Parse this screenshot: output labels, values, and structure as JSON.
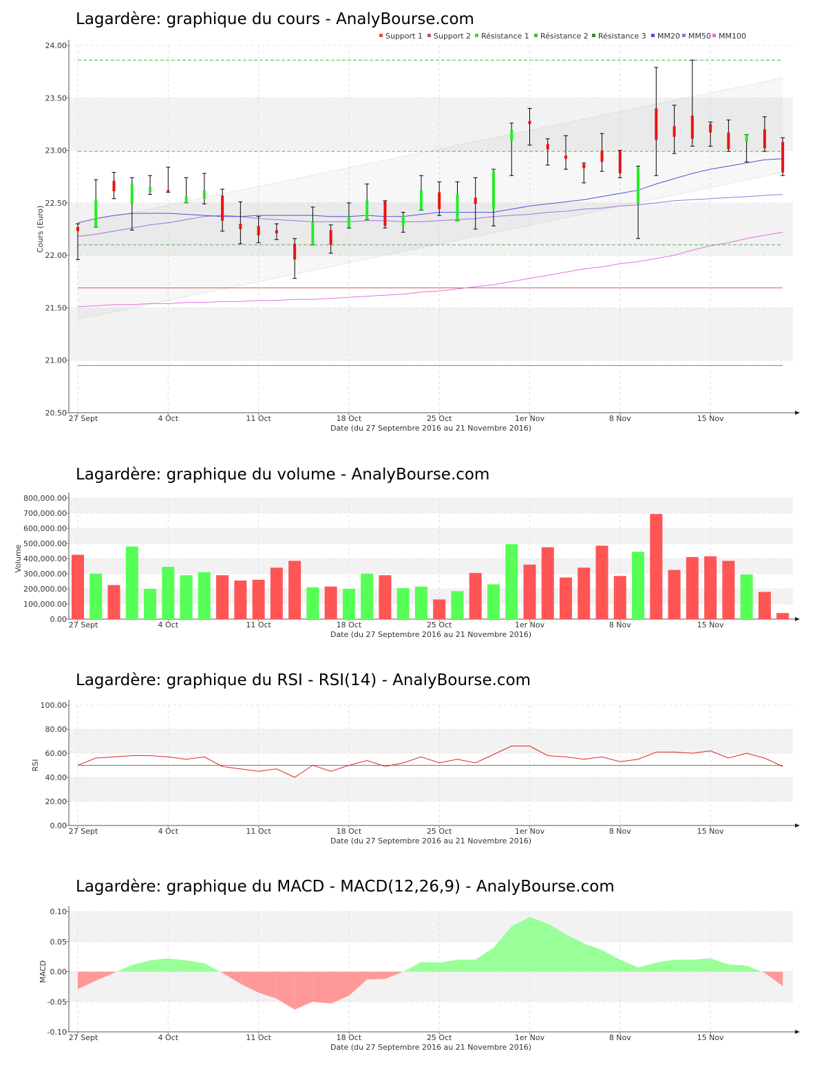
{
  "chart_data": [
    {
      "type": "candlestick",
      "title": "Lagardère: graphique du cours - AnalyBourse.com",
      "ylabel": "Cours (Euro)",
      "xlabel": "Date (du 27 Septembre 2016 au 21 Novembre 2016)",
      "ylim": [
        20.5,
        24.0
      ],
      "yticks": [
        "20.50",
        "21.00",
        "21.50",
        "22.00",
        "22.50",
        "23.00",
        "23.50",
        "24.00"
      ],
      "xticks": [
        {
          "label": "27 Sept",
          "index": 0
        },
        {
          "label": "4 Oct",
          "index": 5
        },
        {
          "label": "11 Oct",
          "index": 10
        },
        {
          "label": "18 Oct",
          "index": 15
        },
        {
          "label": "25 Oct",
          "index": 20
        },
        {
          "label": "1er Nov",
          "index": 25
        },
        {
          "label": "8 Nov",
          "index": 30
        },
        {
          "label": "15 Nov",
          "index": 35
        }
      ],
      "legend": [
        {
          "label": "Support 1",
          "color": "#e05050"
        },
        {
          "label": "Support 2",
          "color": "#b06060"
        },
        {
          "label": "Résistance 1",
          "color": "#60c060"
        },
        {
          "label": "Résistance 2",
          "color": "#50b050"
        },
        {
          "label": "Résistance 3",
          "color": "#408040"
        },
        {
          "label": "MM20",
          "color": "#5050e0"
        },
        {
          "label": "MM50",
          "color": "#a070e0"
        },
        {
          "label": "MM100",
          "color": "#e070e0"
        }
      ],
      "candles": [
        {
          "o": 22.27,
          "h": 22.3,
          "l": 21.96,
          "c": 22.23
        },
        {
          "o": 22.27,
          "h": 22.72,
          "l": 22.27,
          "c": 22.53
        },
        {
          "o": 22.71,
          "h": 22.79,
          "l": 22.54,
          "c": 22.61
        },
        {
          "o": 22.49,
          "h": 22.74,
          "l": 22.24,
          "c": 22.68
        },
        {
          "o": 22.6,
          "h": 22.76,
          "l": 22.58,
          "c": 22.65
        },
        {
          "o": 22.62,
          "h": 22.84,
          "l": 22.6,
          "c": 22.6
        },
        {
          "o": 22.5,
          "h": 22.74,
          "l": 22.5,
          "c": 22.56
        },
        {
          "o": 22.54,
          "h": 22.78,
          "l": 22.49,
          "c": 22.62
        },
        {
          "o": 22.57,
          "h": 22.63,
          "l": 22.23,
          "c": 22.33
        },
        {
          "o": 22.3,
          "h": 22.51,
          "l": 22.11,
          "c": 22.25
        },
        {
          "o": 22.28,
          "h": 22.37,
          "l": 22.12,
          "c": 22.19
        },
        {
          "o": 22.24,
          "h": 22.3,
          "l": 22.15,
          "c": 22.21
        },
        {
          "o": 22.11,
          "h": 22.16,
          "l": 21.78,
          "c": 21.96
        },
        {
          "o": 22.1,
          "h": 22.46,
          "l": 22.1,
          "c": 22.32
        },
        {
          "o": 22.24,
          "h": 22.29,
          "l": 22.02,
          "c": 22.1
        },
        {
          "o": 22.27,
          "h": 22.5,
          "l": 22.26,
          "c": 22.37
        },
        {
          "o": 22.34,
          "h": 22.68,
          "l": 22.34,
          "c": 22.52
        },
        {
          "o": 22.52,
          "h": 22.52,
          "l": 22.26,
          "c": 22.28
        },
        {
          "o": 22.28,
          "h": 22.41,
          "l": 22.22,
          "c": 22.38
        },
        {
          "o": 22.43,
          "h": 22.76,
          "l": 22.43,
          "c": 22.62
        },
        {
          "o": 22.6,
          "h": 22.7,
          "l": 22.38,
          "c": 22.44
        },
        {
          "o": 22.33,
          "h": 22.7,
          "l": 22.33,
          "c": 22.58
        },
        {
          "o": 22.55,
          "h": 22.74,
          "l": 22.25,
          "c": 22.49
        },
        {
          "o": 22.44,
          "h": 22.82,
          "l": 22.28,
          "c": 22.8
        },
        {
          "o": 23.09,
          "h": 23.26,
          "l": 22.76,
          "c": 23.2
        },
        {
          "o": 23.28,
          "h": 23.4,
          "l": 23.05,
          "c": 23.25
        },
        {
          "o": 23.06,
          "h": 23.11,
          "l": 22.86,
          "c": 23.01
        },
        {
          "o": 22.95,
          "h": 23.14,
          "l": 22.82,
          "c": 22.92
        },
        {
          "o": 22.87,
          "h": 22.88,
          "l": 22.69,
          "c": 22.83
        },
        {
          "o": 23.0,
          "h": 23.16,
          "l": 22.8,
          "c": 22.89
        },
        {
          "o": 23.0,
          "h": 23.0,
          "l": 22.74,
          "c": 22.78
        },
        {
          "o": 22.49,
          "h": 22.85,
          "l": 22.16,
          "c": 22.84
        },
        {
          "o": 23.4,
          "h": 23.79,
          "l": 22.76,
          "c": 23.1
        },
        {
          "o": 23.23,
          "h": 23.43,
          "l": 22.97,
          "c": 23.13
        },
        {
          "o": 23.33,
          "h": 23.86,
          "l": 23.04,
          "c": 23.11
        },
        {
          "o": 23.25,
          "h": 23.27,
          "l": 23.04,
          "c": 23.17
        },
        {
          "o": 23.17,
          "h": 23.29,
          "l": 22.99,
          "c": 23.01
        },
        {
          "o": 23.08,
          "h": 23.15,
          "l": 22.89,
          "c": 23.15
        },
        {
          "o": 23.2,
          "h": 23.32,
          "l": 22.99,
          "c": 23.02
        },
        {
          "o": 23.08,
          "h": 23.12,
          "l": 22.76,
          "c": 22.79
        }
      ],
      "support_lines": [
        21.69,
        20.95
      ],
      "resistance_lines": [
        22.1,
        22.99,
        23.86
      ],
      "trend_channel": {
        "upper": [
          22.3,
          23.69
        ],
        "lower": [
          21.39,
          22.79
        ]
      },
      "mm20": [
        22.31,
        22.35,
        22.38,
        22.4,
        22.4,
        22.4,
        22.39,
        22.38,
        22.37,
        22.37,
        22.38,
        22.38,
        22.38,
        22.38,
        22.37,
        22.37,
        22.38,
        22.37,
        22.37,
        22.39,
        22.41,
        22.41,
        22.41,
        22.41,
        22.44,
        22.47,
        22.49,
        22.51,
        22.53,
        22.56,
        22.59,
        22.62,
        22.68,
        22.73,
        22.78,
        22.82,
        22.85,
        22.88,
        22.91,
        22.92
      ],
      "mm50": [
        22.18,
        22.2,
        22.23,
        22.26,
        22.29,
        22.31,
        22.34,
        22.37,
        22.38,
        22.37,
        22.35,
        22.34,
        22.33,
        22.32,
        22.32,
        22.32,
        22.33,
        22.33,
        22.32,
        22.32,
        22.33,
        22.34,
        22.35,
        22.37,
        22.38,
        22.39,
        22.41,
        22.42,
        22.44,
        22.45,
        22.47,
        22.48,
        22.5,
        22.52,
        22.53,
        22.54,
        22.55,
        22.56,
        22.57,
        22.58
      ],
      "mm100": [
        21.51,
        21.52,
        21.53,
        21.53,
        21.54,
        21.54,
        21.55,
        21.55,
        21.56,
        21.56,
        21.57,
        21.57,
        21.58,
        21.58,
        21.59,
        21.6,
        21.61,
        21.62,
        21.63,
        21.65,
        21.66,
        21.68,
        21.7,
        21.72,
        21.75,
        21.78,
        21.81,
        21.84,
        21.87,
        21.89,
        21.92,
        21.94,
        21.97,
        22.0,
        22.05,
        22.09,
        22.12,
        22.16,
        22.19,
        22.22
      ]
    },
    {
      "type": "bar",
      "title": "Lagardère: graphique du volume - AnalyBourse.com",
      "ylabel": "Volume",
      "xlabel": "Date (du 27 Septembre 2016 au 21 Novembre 2016)",
      "ylim": [
        0,
        800000
      ],
      "yticks": [
        "0.00",
        "100,000.00",
        "200,000.00",
        "300,000.00",
        "400,000.00",
        "500,000.00",
        "600,000.00",
        "700,000.00",
        "800,000.00"
      ],
      "xticks": [
        {
          "label": "27 Sept",
          "index": 0
        },
        {
          "label": "4 Oct",
          "index": 5
        },
        {
          "label": "11 Oct",
          "index": 10
        },
        {
          "label": "18 Oct",
          "index": 15
        },
        {
          "label": "25 Oct",
          "index": 20
        },
        {
          "label": "1er Nov",
          "index": 25
        },
        {
          "label": "8 Nov",
          "index": 30
        },
        {
          "label": "15 Nov",
          "index": 35
        }
      ],
      "values": [
        425000,
        300000,
        225000,
        480000,
        200000,
        345000,
        290000,
        310000,
        290000,
        255000,
        260000,
        340000,
        385000,
        210000,
        215000,
        200000,
        300000,
        290000,
        205000,
        215000,
        130000,
        185000,
        305000,
        230000,
        495000,
        360000,
        475000,
        275000,
        340000,
        485000,
        285000,
        445000,
        695000,
        325000,
        410000,
        415000,
        385000,
        295000,
        180000,
        40000
      ],
      "up": [
        false,
        true,
        false,
        true,
        true,
        true,
        true,
        true,
        false,
        false,
        false,
        false,
        false,
        true,
        false,
        true,
        true,
        false,
        true,
        true,
        false,
        true,
        false,
        true,
        true,
        false,
        false,
        false,
        false,
        false,
        false,
        true,
        false,
        false,
        false,
        false,
        false,
        true,
        false,
        false
      ]
    },
    {
      "type": "line",
      "title": "Lagardère: graphique du RSI - RSI(14) - AnalyBourse.com",
      "ylabel": "RSI",
      "xlabel": "Date (du 27 Septembre 2016 au 21 Novembre 2016)",
      "ylim": [
        0,
        100
      ],
      "yticks": [
        "0.00",
        "20.00",
        "40.00",
        "60.00",
        "80.00",
        "100.00"
      ],
      "xticks": [
        {
          "label": "27 Sept",
          "index": 0
        },
        {
          "label": "4 Oct",
          "index": 5
        },
        {
          "label": "11 Oct",
          "index": 10
        },
        {
          "label": "18 Oct",
          "index": 15
        },
        {
          "label": "25 Oct",
          "index": 20
        },
        {
          "label": "1er Nov",
          "index": 25
        },
        {
          "label": "8 Nov",
          "index": 30
        },
        {
          "label": "15 Nov",
          "index": 35
        }
      ],
      "reference": 50,
      "values": [
        50,
        56,
        57,
        58,
        58,
        57,
        55,
        57,
        49,
        47,
        45,
        47,
        40,
        50,
        45,
        50,
        54,
        49,
        52,
        57,
        52,
        55,
        52,
        59,
        66,
        66,
        58,
        57,
        55,
        57,
        53,
        55,
        61,
        61,
        60,
        62,
        56,
        60,
        56,
        49
      ]
    },
    {
      "type": "area",
      "title": "Lagardère: graphique du MACD - MACD(12,26,9) - AnalyBourse.com",
      "ylabel": "MACD",
      "xlabel": "Date (du 27 Septembre 2016 au 21 Novembre 2016)",
      "ylim": [
        -0.1,
        0.1
      ],
      "yticks": [
        "-0.10",
        "-0.05",
        "0.00",
        "0.05",
        "0.10"
      ],
      "xticks": [
        {
          "label": "27 Sept",
          "index": 0
        },
        {
          "label": "4 Oct",
          "index": 5
        },
        {
          "label": "11 Oct",
          "index": 10
        },
        {
          "label": "18 Oct",
          "index": 15
        },
        {
          "label": "25 Oct",
          "index": 20
        },
        {
          "label": "1er Nov",
          "index": 25
        },
        {
          "label": "8 Nov",
          "index": 30
        },
        {
          "label": "15 Nov",
          "index": 35
        }
      ],
      "values": [
        -0.029,
        -0.015,
        -0.002,
        0.011,
        0.019,
        0.022,
        0.019,
        0.014,
        -0.002,
        -0.02,
        -0.035,
        -0.045,
        -0.063,
        -0.05,
        -0.053,
        -0.04,
        -0.013,
        -0.012,
        0.0,
        0.016,
        0.015,
        0.02,
        0.02,
        0.04,
        0.075,
        0.091,
        0.08,
        0.062,
        0.047,
        0.036,
        0.02,
        0.007,
        0.015,
        0.02,
        0.02,
        0.022,
        0.012,
        0.01,
        -0.002,
        -0.024
      ]
    }
  ]
}
